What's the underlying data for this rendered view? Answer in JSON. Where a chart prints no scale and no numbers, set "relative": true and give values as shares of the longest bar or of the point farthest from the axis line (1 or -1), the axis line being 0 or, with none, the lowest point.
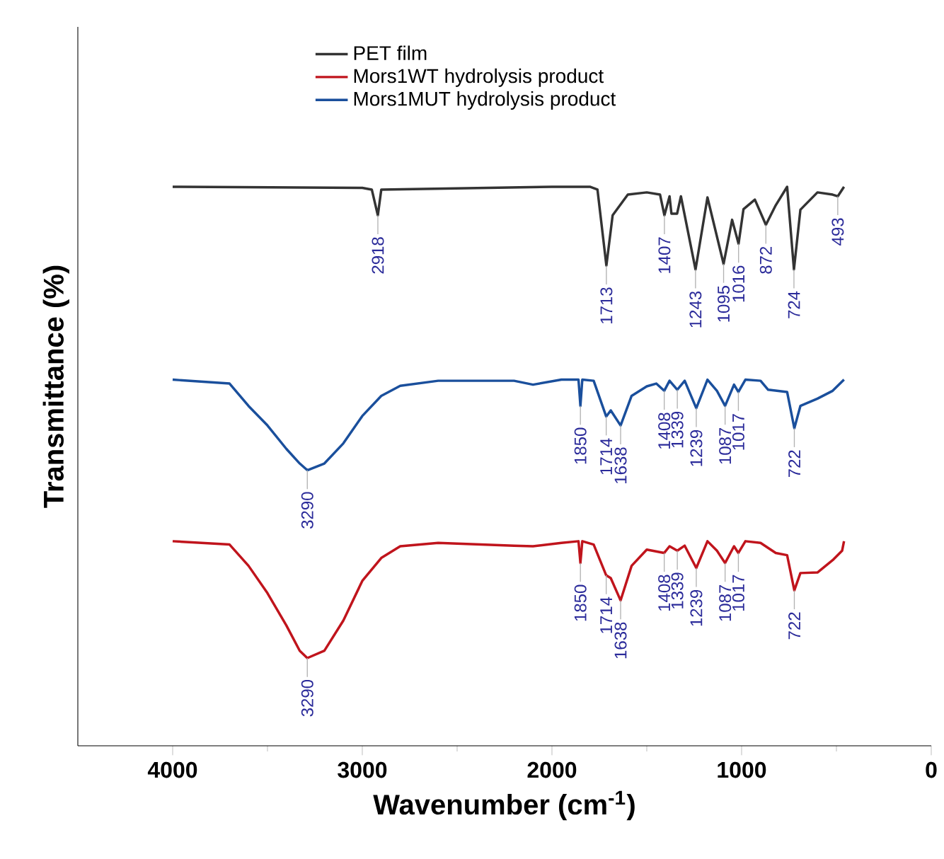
{
  "chart_data": {
    "type": "line",
    "relative": true,
    "xlabel": "Wavenumber (cm$^{-1}$)",
    "ylabel": "Transmittance (%)",
    "xlim": [
      4500,
      0
    ],
    "xticks": [
      4000,
      3000,
      2000,
      1000,
      0
    ],
    "legend": "top",
    "series": [
      {
        "name": "PET film",
        "color": "#333333",
        "x": [
          4000,
          3000,
          2950,
          2918,
          2900,
          2000,
          1800,
          1760,
          1713,
          1680,
          1600,
          1500,
          1430,
          1407,
          1380,
          1370,
          1340,
          1320,
          1243,
          1180,
          1095,
          1050,
          1016,
          990,
          930,
          872,
          820,
          760,
          724,
          690,
          600,
          520,
          493,
          460
        ],
        "values": [
          1.0,
          0.998,
          0.995,
          0.949,
          0.995,
          1.0,
          1.0,
          0.995,
          0.859,
          0.949,
          0.986,
          0.99,
          0.986,
          0.949,
          0.983,
          0.952,
          0.952,
          0.983,
          0.852,
          0.981,
          0.862,
          0.941,
          0.898,
          0.96,
          0.977,
          0.932,
          0.967,
          1.0,
          0.852,
          0.959,
          0.99,
          0.986,
          0.983,
          1.0
        ]
      },
      {
        "name": "Mors1WT hydrolysis product",
        "color": "#c0141c",
        "x": [
          4000,
          3700,
          3600,
          3500,
          3400,
          3330,
          3290,
          3200,
          3100,
          3000,
          2900,
          2800,
          2600,
          2200,
          2100,
          1950,
          1860,
          1850,
          1840,
          1780,
          1714,
          1690,
          1638,
          1580,
          1500,
          1408,
          1380,
          1339,
          1300,
          1239,
          1180,
          1130,
          1087,
          1040,
          1017,
          980,
          900,
          820,
          760,
          722,
          690,
          600,
          520,
          470,
          460
        ],
        "values": [
          0.366,
          0.36,
          0.322,
          0.273,
          0.215,
          0.17,
          0.157,
          0.17,
          0.224,
          0.295,
          0.336,
          0.357,
          0.363,
          0.358,
          0.357,
          0.363,
          0.366,
          0.327,
          0.366,
          0.36,
          0.305,
          0.3,
          0.26,
          0.322,
          0.351,
          0.345,
          0.357,
          0.349,
          0.358,
          0.318,
          0.366,
          0.349,
          0.327,
          0.357,
          0.345,
          0.366,
          0.363,
          0.345,
          0.341,
          0.278,
          0.309,
          0.31,
          0.332,
          0.349,
          0.366
        ]
      },
      {
        "name": "Mors1MUT hydrolysis product",
        "color": "#1a4f9c",
        "x": [
          4000,
          3700,
          3600,
          3500,
          3400,
          3330,
          3290,
          3200,
          3100,
          3000,
          2900,
          2800,
          2600,
          2200,
          2100,
          1950,
          1860,
          1850,
          1840,
          1780,
          1714,
          1690,
          1638,
          1580,
          1500,
          1450,
          1408,
          1380,
          1339,
          1300,
          1239,
          1180,
          1130,
          1087,
          1040,
          1017,
          980,
          900,
          860,
          760,
          722,
          690,
          600,
          520,
          460
        ],
        "values": [
          0.655,
          0.648,
          0.608,
          0.573,
          0.531,
          0.505,
          0.493,
          0.505,
          0.541,
          0.59,
          0.626,
          0.644,
          0.653,
          0.653,
          0.646,
          0.655,
          0.655,
          0.608,
          0.655,
          0.653,
          0.589,
          0.6,
          0.573,
          0.626,
          0.643,
          0.648,
          0.635,
          0.653,
          0.637,
          0.653,
          0.604,
          0.655,
          0.635,
          0.608,
          0.646,
          0.633,
          0.655,
          0.653,
          0.637,
          0.633,
          0.568,
          0.608,
          0.621,
          0.635,
          0.655
        ]
      }
    ],
    "annotations": [
      {
        "text": "2918",
        "x": 2918,
        "y": 0.949
      },
      {
        "text": "1713",
        "x": 1713,
        "y": 0.859
      },
      {
        "text": "1407",
        "x": 1407,
        "y": 0.949
      },
      {
        "text": "1243",
        "x": 1243,
        "y": 0.852
      },
      {
        "text": "1095",
        "x": 1095,
        "y": 0.862
      },
      {
        "text": "1016",
        "x": 1016,
        "y": 0.898
      },
      {
        "text": "872",
        "x": 872,
        "y": 0.932
      },
      {
        "text": "724",
        "x": 724,
        "y": 0.852
      },
      {
        "text": "493",
        "x": 493,
        "y": 0.983
      },
      {
        "text": "3290",
        "x": 3290,
        "y": 0.493
      },
      {
        "text": "1850",
        "x": 1850,
        "y": 0.608
      },
      {
        "text": "1714",
        "x": 1714,
        "y": 0.589
      },
      {
        "text": "1638",
        "x": 1638,
        "y": 0.573
      },
      {
        "text": "1408",
        "x": 1408,
        "y": 0.635
      },
      {
        "text": "1339",
        "x": 1339,
        "y": 0.637
      },
      {
        "text": "1239",
        "x": 1239,
        "y": 0.604
      },
      {
        "text": "1087",
        "x": 1087,
        "y": 0.608
      },
      {
        "text": "1017",
        "x": 1017,
        "y": 0.633
      },
      {
        "text": "722",
        "x": 722,
        "y": 0.568
      },
      {
        "text": "3290",
        "x": 3290,
        "y": 0.157
      },
      {
        "text": "1850",
        "x": 1850,
        "y": 0.327
      },
      {
        "text": "1714",
        "x": 1714,
        "y": 0.305
      },
      {
        "text": "1638",
        "x": 1638,
        "y": 0.26
      },
      {
        "text": "1408",
        "x": 1408,
        "y": 0.345
      },
      {
        "text": "1339",
        "x": 1339,
        "y": 0.349
      },
      {
        "text": "1239",
        "x": 1239,
        "y": 0.318
      },
      {
        "text": "1087",
        "x": 1087,
        "y": 0.327
      },
      {
        "text": "1017",
        "x": 1017,
        "y": 0.345
      },
      {
        "text": "722",
        "x": 722,
        "y": 0.278
      }
    ]
  }
}
